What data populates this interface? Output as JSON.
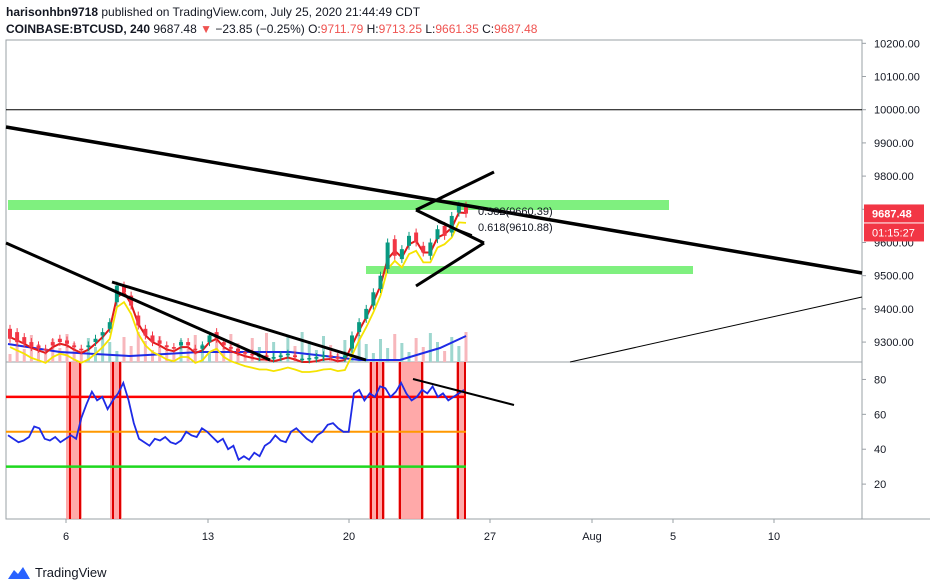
{
  "header": {
    "user": "harisonhbn9718",
    "published_text": "published on TradingView.com, July 25, 2020 21:44:49 CDT",
    "symbol": "COINBASE:BTCUSD, 240",
    "last": "9687.48",
    "change_arrow": "▼",
    "change": "−23.85 (−0.25%)",
    "o_label": "O:",
    "o_value": "9711.79",
    "h_label": "H:",
    "h_value": "9713.25",
    "l_label": "L:",
    "l_value": "9661.35",
    "c_label": "C:",
    "c_value": "9687.48"
  },
  "footer": {
    "brand": "TradingView",
    "logo_icon": "tradingview-logo-icon"
  },
  "colors": {
    "candle_up": "#089981",
    "candle_down": "#f23645",
    "trendline": "#000000",
    "zone": "#7ff07f",
    "ma_blue": "#1e2be6",
    "ma_red": "#e01b1b",
    "ma_yellow": "#f5e300",
    "rsi_line": "#1e2be6",
    "rsi_70": "#ff0000",
    "rsi_50": "#ff9800",
    "rsi_30": "#1ed81e",
    "highlight": "#ff9a9a",
    "price_badge": "#f23645"
  },
  "chart_data": {
    "type": "candlestick",
    "price_axis": {
      "ticks": [
        "10200.00",
        "10100.00",
        "10000.00",
        "9900.00",
        "9800.00",
        "9700.00",
        "9600.00",
        "9500.00",
        "9400.00",
        "9300.00"
      ],
      "range": [
        9240,
        10210
      ]
    },
    "rsi_axis": {
      "ticks": [
        "80",
        "60",
        "40",
        "20"
      ],
      "range": [
        0,
        90
      ]
    },
    "time_axis": {
      "ticks": [
        "6",
        "13",
        "20",
        "27",
        "Aug",
        "5",
        "10"
      ]
    },
    "last_price_label": "9687.48",
    "countdown_label": "01:15:27",
    "horizontal_line": 10000,
    "fib_labels": [
      "0.382(9660.39)",
      "0.618(9610.88)"
    ],
    "price_path": [
      [
        9340,
        9310
      ],
      [
        9330,
        9300
      ],
      [
        9315,
        9295
      ],
      [
        9300,
        9285
      ],
      [
        9290,
        9280
      ],
      [
        9280,
        9275
      ],
      [
        9300,
        9290
      ],
      [
        9310,
        9300
      ],
      [
        9305,
        9295
      ],
      [
        9290,
        9285
      ],
      [
        9280,
        9275
      ],
      [
        9285,
        9290
      ],
      [
        9300,
        9310
      ],
      [
        9320,
        9330
      ],
      [
        9340,
        9360
      ],
      [
        9420,
        9470
      ],
      [
        9470,
        9450
      ],
      [
        9440,
        9410
      ],
      [
        9380,
        9350
      ],
      [
        9340,
        9320
      ],
      [
        9320,
        9300
      ],
      [
        9305,
        9295
      ],
      [
        9290,
        9285
      ],
      [
        9285,
        9280
      ],
      [
        9290,
        9300
      ],
      [
        9300,
        9290
      ],
      [
        9280,
        9275
      ],
      [
        9280,
        9290
      ],
      [
        9300,
        9320
      ],
      [
        9330,
        9310
      ],
      [
        9300,
        9290
      ],
      [
        9285,
        9280
      ],
      [
        9280,
        9270
      ],
      [
        9270,
        9265
      ],
      [
        9265,
        9260
      ],
      [
        9255,
        9260
      ],
      [
        9260,
        9255
      ],
      [
        9250,
        9255
      ],
      [
        9255,
        9260
      ],
      [
        9262,
        9265
      ],
      [
        9260,
        9255
      ],
      [
        9250,
        9250
      ],
      [
        9248,
        9252
      ],
      [
        9250,
        9255
      ],
      [
        9255,
        9260
      ],
      [
        9260,
        9258
      ],
      [
        9255,
        9250
      ],
      [
        9252,
        9260
      ],
      [
        9280,
        9320
      ],
      [
        9330,
        9360
      ],
      [
        9370,
        9400
      ],
      [
        9410,
        9450
      ],
      [
        9460,
        9500
      ],
      [
        9520,
        9600
      ],
      [
        9610,
        9560
      ],
      [
        9550,
        9580
      ],
      [
        9590,
        9620
      ],
      [
        9630,
        9600
      ],
      [
        9590,
        9570
      ],
      [
        9560,
        9600
      ],
      [
        9610,
        9640
      ],
      [
        9650,
        9620
      ],
      [
        9630,
        9680
      ],
      [
        9690,
        9711
      ],
      [
        9711,
        9687
      ]
    ],
    "rsi_path": [
      48,
      46,
      44,
      45,
      47,
      53,
      52,
      46,
      45,
      47,
      44,
      46,
      48,
      46,
      58,
      66,
      73,
      68,
      70,
      63,
      68,
      72,
      78,
      68,
      55,
      46,
      44,
      42,
      46,
      45,
      47,
      44,
      43,
      45,
      50,
      48,
      47,
      52,
      50,
      47,
      44,
      46,
      40,
      42,
      34,
      36,
      34,
      38,
      36,
      42,
      44,
      48,
      45,
      44,
      50,
      52,
      49,
      46,
      44,
      48,
      50,
      54,
      55,
      52,
      50,
      50,
      72,
      74,
      68,
      72,
      70,
      76,
      75,
      70,
      73,
      78,
      72,
      68,
      70,
      74,
      72,
      76,
      70,
      72,
      68,
      70,
      72,
      74
    ]
  }
}
